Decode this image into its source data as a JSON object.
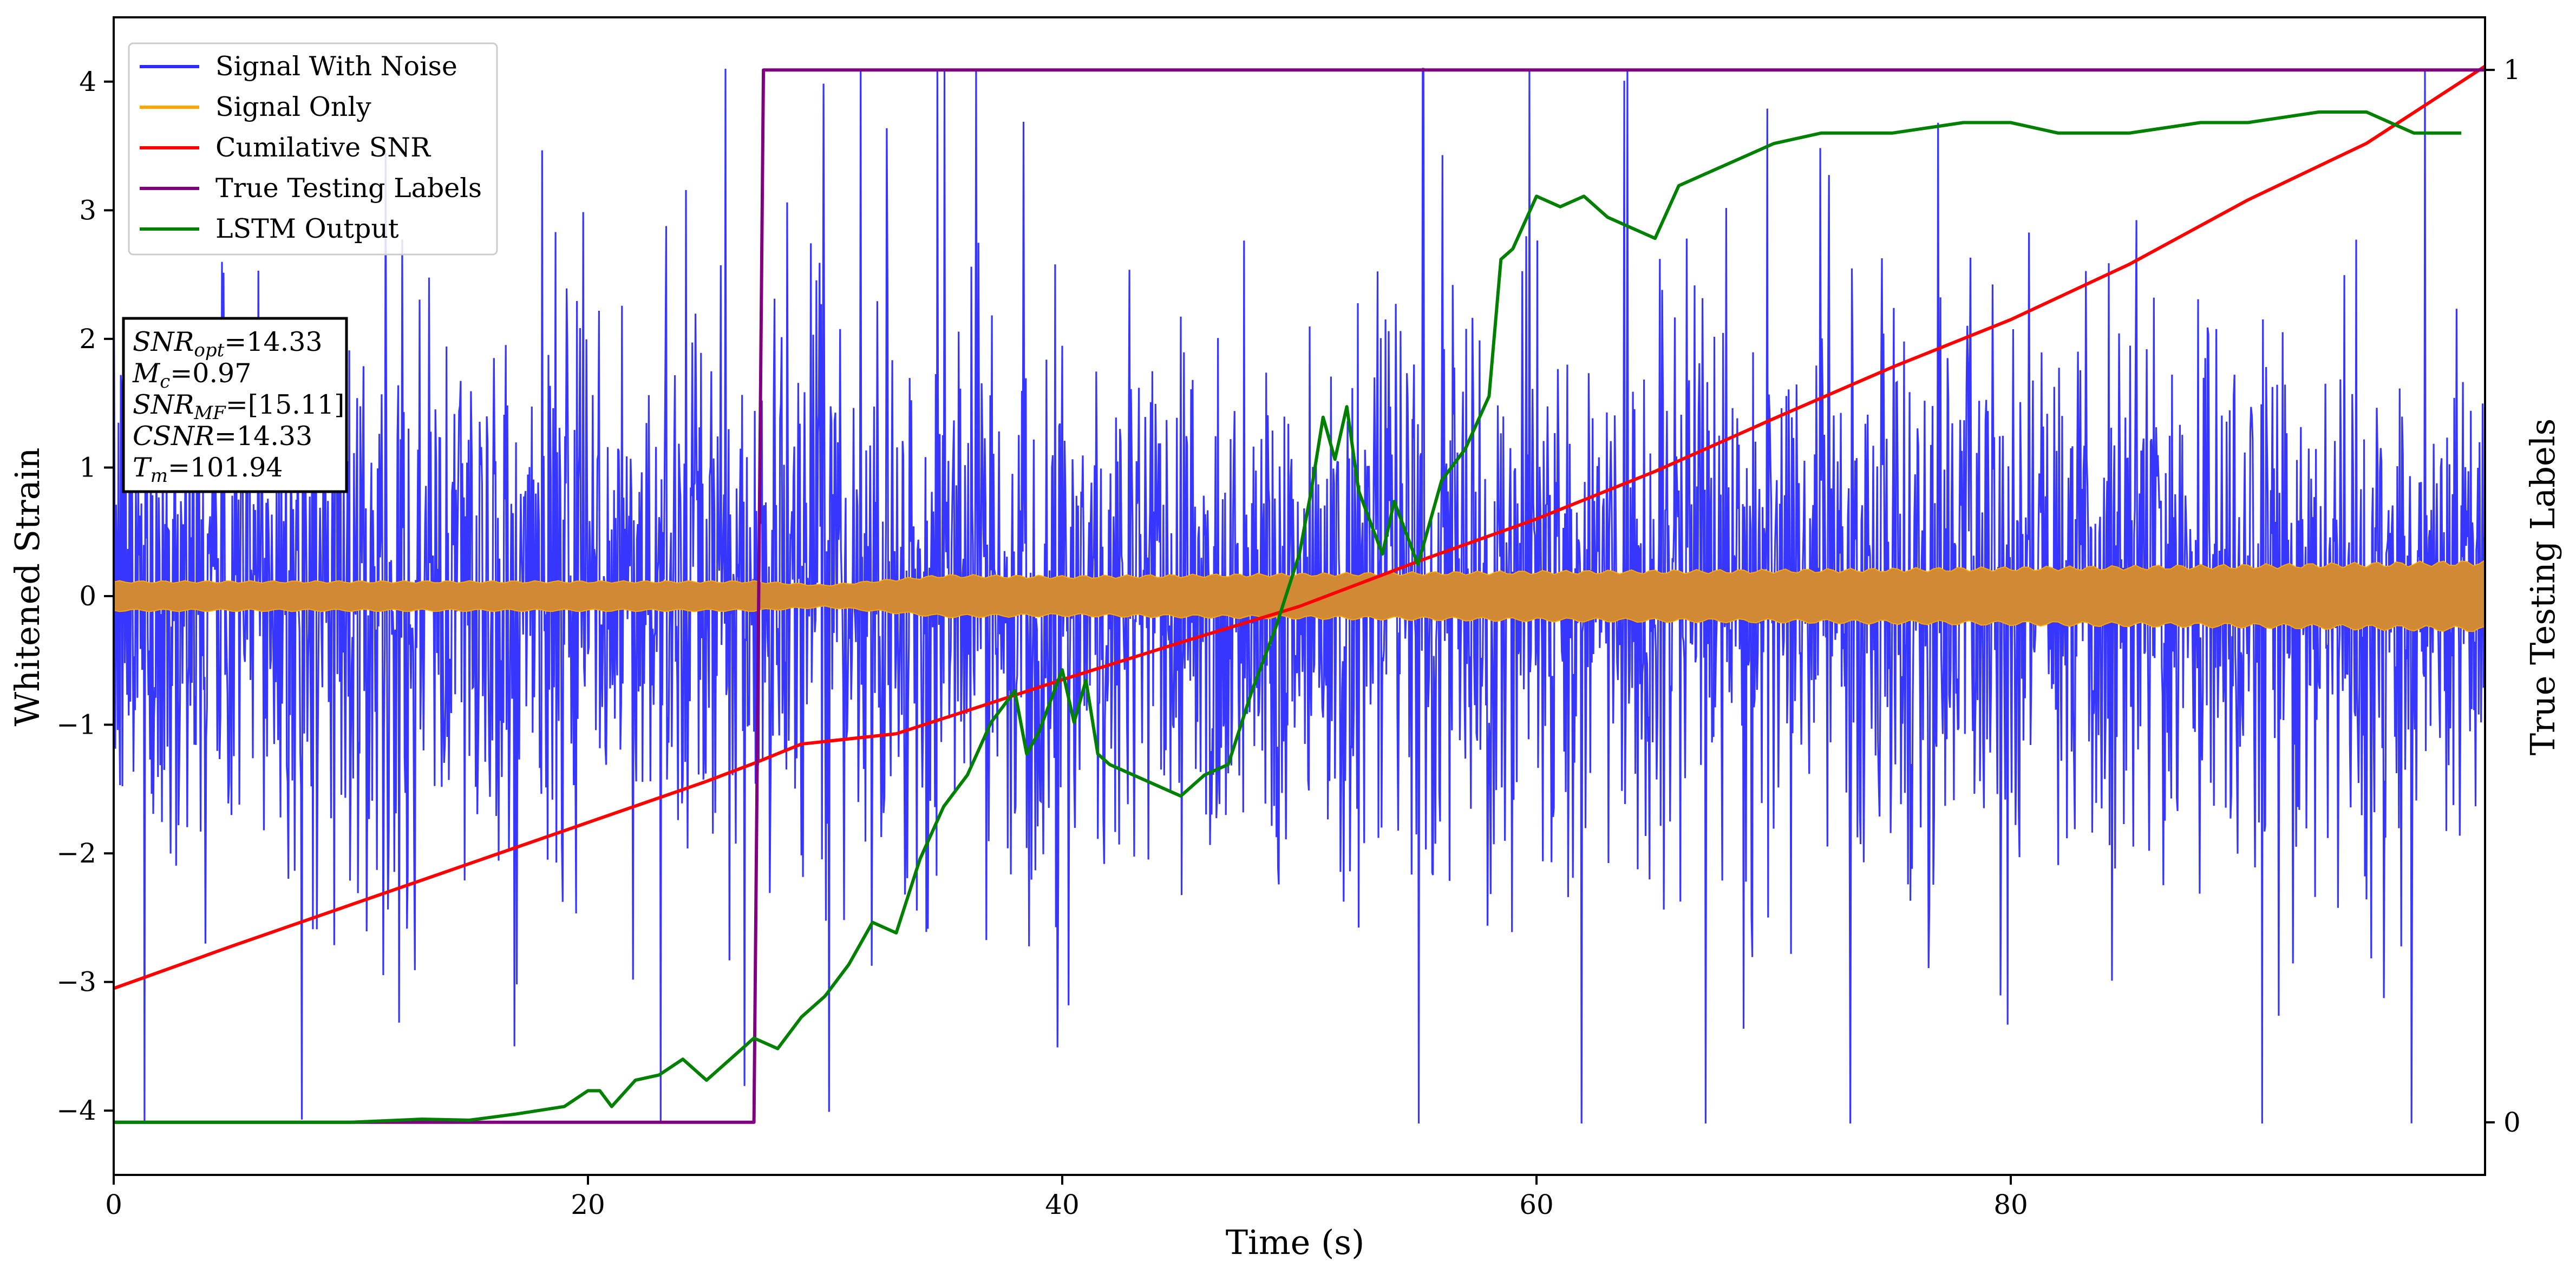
{
  "chart_data": {
    "type": "line",
    "title": "",
    "xlabel": "Time (s)",
    "ylabel": "Whitened Strain",
    "ylabel_right": "True Testing Labels",
    "xlim": [
      0,
      100
    ],
    "ylim": [
      -4.5,
      4.5
    ],
    "ylim_right": [
      -0.05,
      1.05
    ],
    "x_ticks": [
      0,
      20,
      40,
      60,
      80
    ],
    "y_ticks": [
      -4,
      -3,
      -2,
      -1,
      0,
      1,
      2,
      3,
      4
    ],
    "y_ticks_right": [
      0,
      1
    ],
    "grid": false,
    "legend_position": "top-left",
    "legend": [
      "Signal With Noise",
      "Signal Only",
      "Cumilative SNR",
      "True Testing Labels",
      "LSTM Output"
    ],
    "annotation": {
      "lines": [
        {
          "base": "SNR",
          "sub": "opt",
          "value": "=14.33"
        },
        {
          "base": "M",
          "sub": "c",
          "value": "=0.97"
        },
        {
          "base": "SNR",
          "sub": "MF",
          "value": "=[15.11]"
        },
        {
          "base": "CSNR",
          "sub": "",
          "value": "=14.33"
        },
        {
          "base": "T",
          "sub": "m",
          "value": "=101.94"
        }
      ]
    },
    "series": [
      {
        "name": "Signal With Noise",
        "axis": "left",
        "color": "#2b2bff",
        "description_envelope": {
          "typical_amplitude": 1.6,
          "max": 4.1,
          "min": -4.1
        }
      },
      {
        "name": "Signal Only",
        "axis": "left",
        "color": "#ffa500",
        "envelope": {
          "x": [
            0,
            10,
            20,
            27,
            30,
            35,
            40,
            50,
            60,
            70,
            80,
            90,
            100
          ],
          "amplitude": [
            0.12,
            0.12,
            0.12,
            0.12,
            0.09,
            0.17,
            0.16,
            0.18,
            0.2,
            0.21,
            0.23,
            0.25,
            0.28
          ]
        }
      },
      {
        "name": "Cumilative SNR",
        "axis": "left",
        "color": "#ff0000",
        "x": [
          0,
          5,
          10,
          15,
          20,
          25,
          27,
          29,
          33,
          37,
          40,
          45,
          50,
          55,
          60,
          65,
          70,
          75,
          80,
          85,
          90,
          95,
          100
        ],
        "y": [
          -3.05,
          -2.72,
          -2.4,
          -2.08,
          -1.76,
          -1.44,
          -1.3,
          -1.15,
          -1.07,
          -0.83,
          -0.65,
          -0.36,
          -0.08,
          0.27,
          0.6,
          0.97,
          1.38,
          1.78,
          2.15,
          2.58,
          3.08,
          3.52,
          4.12
        ]
      },
      {
        "name": "True Testing Labels",
        "axis": "right",
        "color": "#800080",
        "x": [
          0,
          27.0,
          27.4,
          100
        ],
        "y": [
          0,
          0,
          1,
          1
        ]
      },
      {
        "name": "LSTM Output",
        "axis": "right",
        "color": "#008000",
        "x": [
          0,
          10,
          13,
          15,
          17,
          19,
          20,
          20.5,
          21,
          22,
          23,
          24,
          25,
          26,
          27,
          28,
          29,
          30,
          31,
          32,
          33,
          34,
          35,
          36,
          37,
          38,
          38.5,
          39,
          40,
          40.5,
          41,
          41.5,
          42,
          43,
          44,
          45,
          46,
          47,
          48,
          49,
          50,
          50.5,
          51,
          51.5,
          52,
          52.5,
          53,
          53.5,
          54,
          54.5,
          55,
          56,
          57,
          58,
          58.5,
          59,
          60,
          61,
          62,
          63,
          64,
          65,
          66,
          67,
          68,
          70,
          72,
          75,
          78,
          80,
          82,
          85,
          88,
          90,
          93,
          95,
          97,
          99
        ],
        "y": [
          0,
          0,
          0.003,
          0.002,
          0.008,
          0.015,
          0.03,
          0.03,
          0.015,
          0.04,
          0.045,
          0.06,
          0.04,
          0.06,
          0.08,
          0.07,
          0.1,
          0.12,
          0.15,
          0.19,
          0.18,
          0.25,
          0.3,
          0.33,
          0.38,
          0.41,
          0.35,
          0.37,
          0.43,
          0.38,
          0.42,
          0.35,
          0.34,
          0.33,
          0.32,
          0.31,
          0.33,
          0.34,
          0.41,
          0.47,
          0.54,
          0.6,
          0.67,
          0.63,
          0.68,
          0.6,
          0.57,
          0.54,
          0.59,
          0.56,
          0.53,
          0.61,
          0.64,
          0.69,
          0.82,
          0.83,
          0.88,
          0.87,
          0.88,
          0.86,
          0.85,
          0.84,
          0.89,
          0.9,
          0.91,
          0.93,
          0.94,
          0.94,
          0.95,
          0.95,
          0.94,
          0.94,
          0.95,
          0.95,
          0.96,
          0.96,
          0.94,
          0.94
        ]
      }
    ]
  }
}
